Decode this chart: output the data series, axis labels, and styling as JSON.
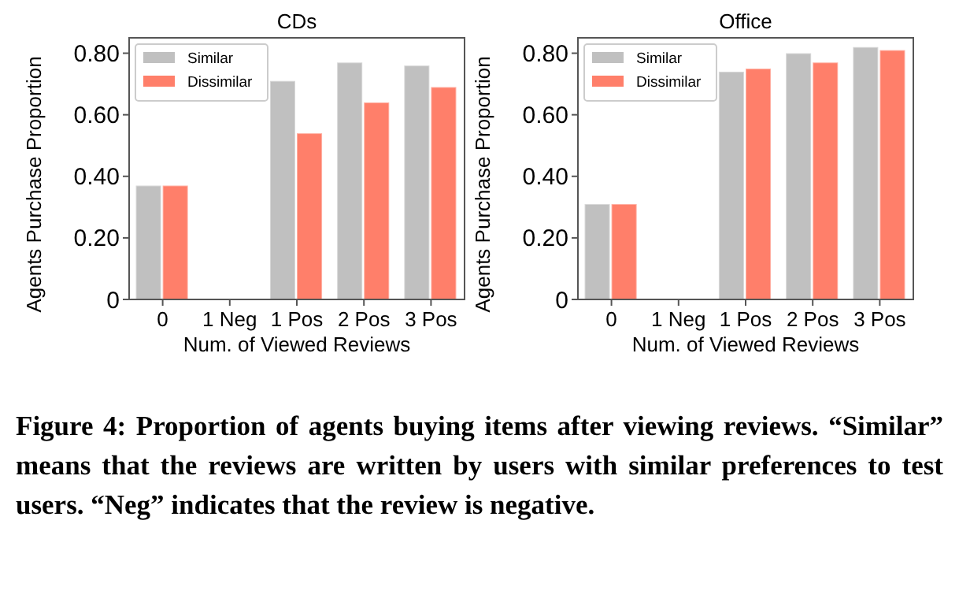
{
  "chart_data": [
    {
      "type": "bar",
      "title": "CDs",
      "xlabel": "Num. of Viewed Reviews",
      "ylabel": "Agents Purchase Proportion",
      "categories": [
        "0",
        "1 Neg",
        "1 Pos",
        "2 Pos",
        "3 Pos"
      ],
      "series": [
        {
          "name": "Similar",
          "color": "#c0c0c0",
          "values": [
            0.37,
            0,
            0.71,
            0.77,
            0.76
          ]
        },
        {
          "name": "Dissimilar",
          "color": "#ff7f6a",
          "values": [
            0.37,
            0,
            0.54,
            0.64,
            0.69
          ]
        }
      ],
      "ylim": [
        0,
        0.85
      ],
      "yticks": [
        0,
        {
          "value": 0.2,
          "label": "0.20"
        },
        {
          "value": 0.4,
          "label": "0.40"
        },
        {
          "value": 0.6,
          "label": "0.60"
        },
        {
          "value": 0.8,
          "label": "0.80"
        }
      ],
      "grid": false,
      "legend": "top left",
      "annotations": [
        "Figure 4: Proportion of agents buying items after viewing reviews. “Similar” means that the reviews are written by users with similar preferences to test users. “Neg” indicates that the review is negative."
      ]
    },
    {
      "type": "bar",
      "title": "Office",
      "xlabel": "Num. of Viewed Reviews",
      "ylabel": "Agents Purchase Proportion",
      "categories": [
        "0",
        "1 Neg",
        "1 Pos",
        "2 Pos",
        "3 Pos"
      ],
      "series": [
        {
          "name": "Similar",
          "color": "#c0c0c0",
          "values": [
            0.31,
            0,
            0.74,
            0.8,
            0.82
          ]
        },
        {
          "name": "Dissimilar",
          "color": "#ff7f6a",
          "values": [
            0.31,
            0,
            0.75,
            0.77,
            0.81
          ]
        }
      ],
      "ylim": [
        0,
        0.85
      ],
      "yticks": [
        0,
        {
          "value": 0.2,
          "label": "0.20"
        },
        {
          "value": 0.4,
          "label": "0.40"
        },
        {
          "value": 0.6,
          "label": "0.60"
        },
        {
          "value": 0.8,
          "label": "0.80"
        }
      ],
      "grid": false,
      "legend": "top left"
    }
  ]
}
